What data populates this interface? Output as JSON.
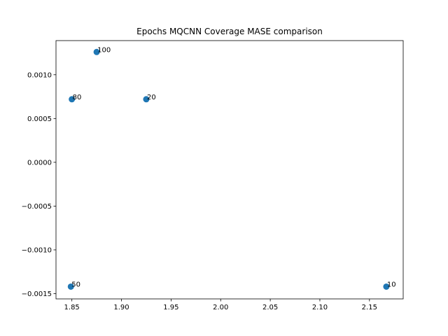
{
  "chart_data": {
    "type": "scatter",
    "title": "Epochs MQCNN Coverage MASE comparison",
    "xlabel": "",
    "ylabel": "",
    "xlim": [
      1.834,
      2.184
    ],
    "ylim": [
      -0.00156,
      0.00139
    ],
    "xticks": [
      1.85,
      1.9,
      1.95,
      2.0,
      2.05,
      2.1,
      2.15
    ],
    "xtick_labels": [
      "1.85",
      "1.90",
      "1.95",
      "2.00",
      "2.05",
      "2.10",
      "2.15"
    ],
    "yticks": [
      -0.0015,
      -0.001,
      -0.0005,
      0.0,
      0.0005,
      0.001
    ],
    "ytick_labels": [
      "−0.0015",
      "−0.0010",
      "−0.0005",
      "0.0000",
      "0.0005",
      "0.0010"
    ],
    "grid": false,
    "point_color": "#1f77b4",
    "points": [
      {
        "x": 1.875,
        "y": 0.00126,
        "label": "100"
      },
      {
        "x": 1.85,
        "y": 0.00072,
        "label": "80"
      },
      {
        "x": 1.925,
        "y": 0.00072,
        "label": "20"
      },
      {
        "x": 1.849,
        "y": -0.00142,
        "label": "50"
      },
      {
        "x": 2.167,
        "y": -0.00142,
        "label": "10"
      }
    ]
  }
}
